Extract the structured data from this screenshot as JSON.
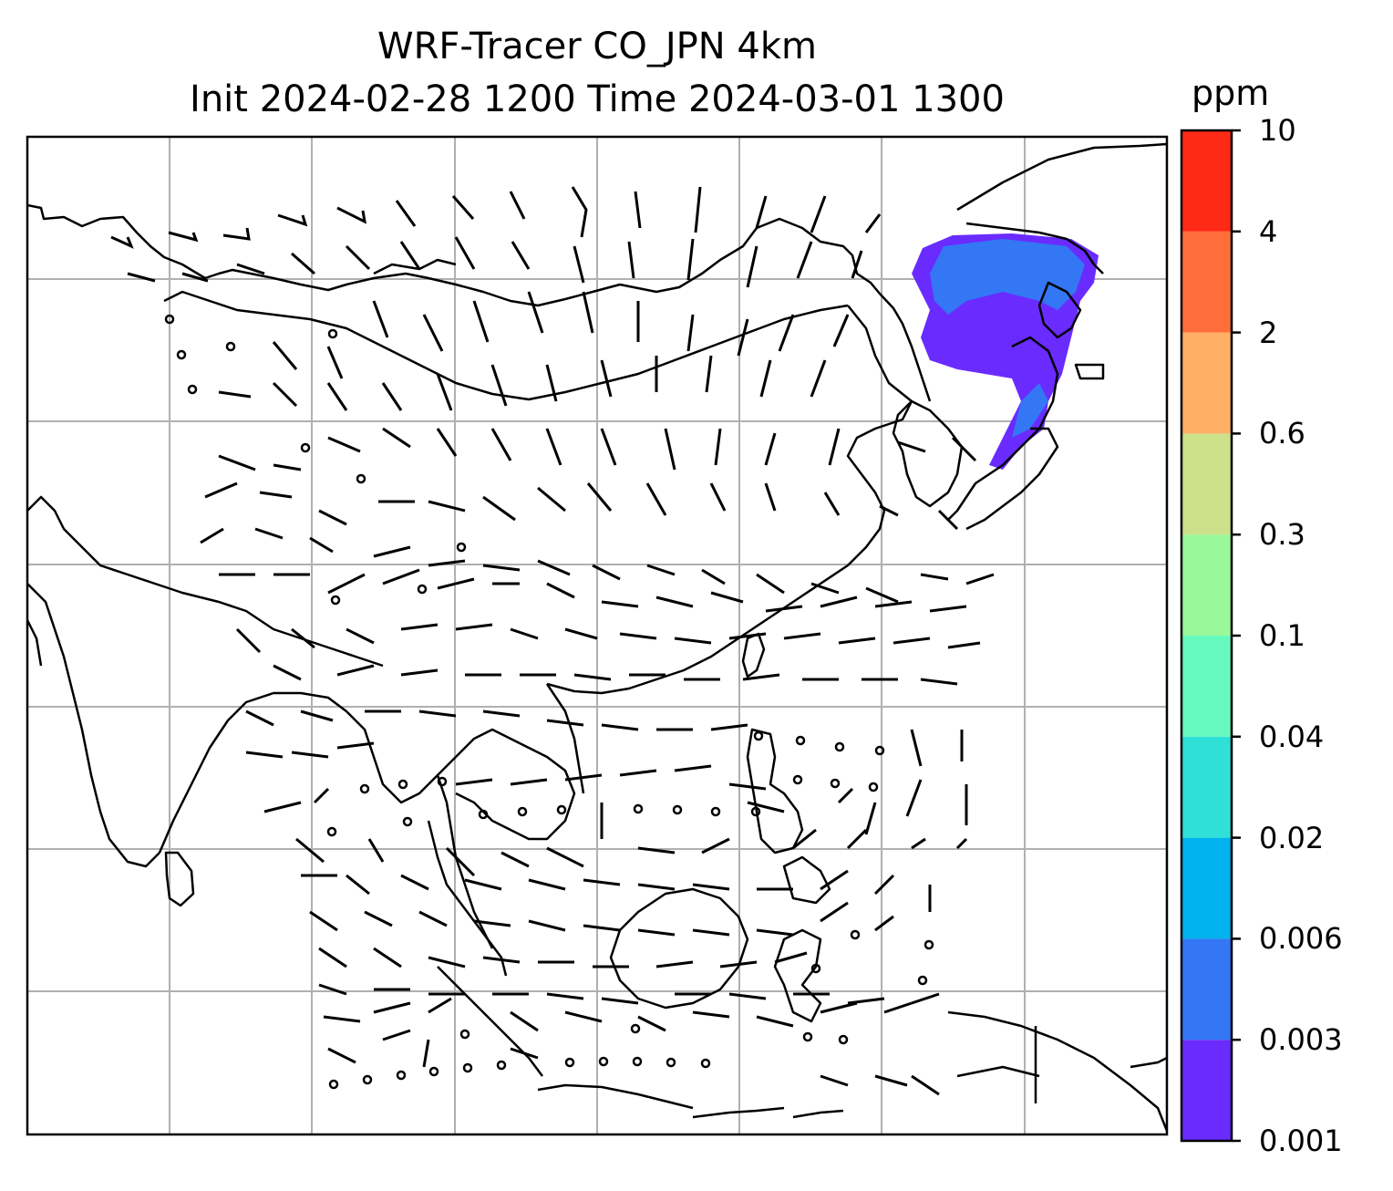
{
  "title": {
    "line1": "WRF-Tracer CO_JPN 4km",
    "line2": "Init 2024-02-28 1200 Time 2024-03-01 1300"
  },
  "colorbar": {
    "unit": "ppm",
    "ticks": [
      "0.001",
      "0.003",
      "0.006",
      "0.02",
      "0.04",
      "0.1",
      "0.3",
      "0.6",
      "2",
      "4",
      "10"
    ],
    "colors": [
      "#6a2bff",
      "#3377f5",
      "#00b2ee",
      "#2fe0d6",
      "#66f9be",
      "#99f99a",
      "#cde08a",
      "#ffb064",
      "#ff6e3a",
      "#ff2a16"
    ]
  },
  "map": {
    "tracer_color": "#3a5cf5",
    "coast_color": "#000000",
    "grid_color": "#b0b0b0"
  }
}
